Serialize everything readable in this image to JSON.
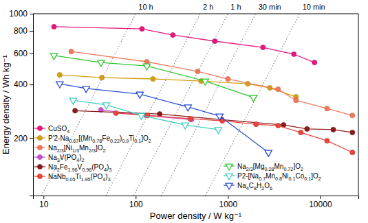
{
  "chart_data": {
    "type": "line",
    "x_label": "Power density / W kg⁻¹",
    "y_label": "Energy density / Wh kg⁻¹",
    "log": true,
    "grid": false,
    "legend": "bottom",
    "xlim": [
      7.7,
      26000
    ],
    "ylim": [
      95,
      1000
    ],
    "xticks": [
      10,
      100,
      1000,
      10000
    ],
    "yticks": [
      200,
      400,
      600,
      800,
      1000
    ],
    "time_lines": [
      {
        "minutes": 600,
        "label": "10 h"
      },
      {
        "minutes": 120,
        "label": "2 h"
      },
      {
        "minutes": 60,
        "label": "1 h"
      },
      {
        "minutes": 30,
        "label": "30 min"
      },
      {
        "minutes": 10,
        "label": "10 min"
      }
    ],
    "series": [
      {
        "name": "CuSO4",
        "color": "#e8177d",
        "marker": "circle",
        "line_style": "solid",
        "x": [
          13,
          117,
          253,
          721,
          2400,
          5200,
          8700
        ],
        "values": [
          845,
          822,
          759,
          701,
          647,
          592,
          532
        ]
      },
      {
        "name": "P'2-Na0.67[(Mn0.78Fe0.22)0.9Ti0.1]O2",
        "color": "#d4a012",
        "marker": "circle",
        "line_style": "solid",
        "x": [
          15,
          43,
          154,
          512,
          1645,
          2850,
          5480
        ],
        "values": [
          453,
          437,
          430,
          418,
          404,
          383,
          341
        ]
      },
      {
        "name": "Na2/3[Ni1/3Mn2/3]O2",
        "color": "#f2785c",
        "marker": "circle",
        "line_style": "solid",
        "x": [
          20,
          132,
          470,
          1000,
          3500,
          5480,
          11900,
          22400
        ],
        "values": [
          613,
          537,
          474,
          430,
          376,
          326,
          293,
          268
        ]
      },
      {
        "name": "Na3V(PO4)2",
        "color": "#c84fd8",
        "marker": "circle",
        "line_style": "solid",
        "x": [
          42,
          129,
          402
        ],
        "values": [
          288,
          268,
          254
        ]
      },
      {
        "name": "Na2Fe1.96V0.96(PO4)3",
        "color": "#8b1c1c",
        "marker": "circle",
        "line_style": "solid",
        "x": [
          22,
          182,
          857,
          4020,
          7210,
          13900,
          22400
        ],
        "values": [
          285,
          273,
          254,
          237,
          225,
          223,
          215
        ]
      },
      {
        "name": "NaNb0.05Ti1.95(PO4)3",
        "color": "#e8453c",
        "marker": "circle",
        "line_style": "solid",
        "x": [
          61,
          134,
          389,
          871,
          2020,
          3500,
          6180,
          11900,
          22400
        ],
        "values": [
          276,
          268,
          257,
          250,
          239,
          235,
          215,
          193,
          166
        ]
      },
      {
        "name": "Na2/3[Mg0.28Mn0.72]O2",
        "color": "#2ec52e",
        "marker": "triangle-down-open",
        "line_style": "solid",
        "x": [
          13,
          42,
          132,
          567,
          1890
        ],
        "values": [
          582,
          532,
          509,
          418,
          338
        ]
      },
      {
        "name": "P2-[Na0.7Mn0.8Ni0.1Co0.1]O2",
        "color": "#3fcfc0",
        "marker": "triangle-down-open",
        "line_style": "solid",
        "x": [
          21,
          48,
          115,
          344,
          787
        ],
        "values": [
          326,
          307,
          268,
          237,
          223
        ]
      },
      {
        "name": "Na4C8H2O6",
        "color": "#2a4fd6",
        "marker": "triangle-down-open",
        "line_style": "solid",
        "x": [
          15,
          29,
          111,
          369,
          813,
          2750
        ],
        "values": [
          404,
          380,
          353,
          299,
          266,
          166
        ]
      }
    ]
  }
}
